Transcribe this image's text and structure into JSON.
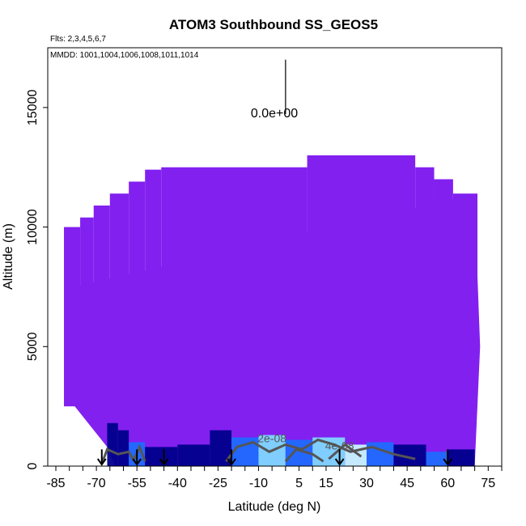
{
  "chart_data": {
    "type": "heatmap",
    "title": "ATOM3 Southbound SS_GEOS5",
    "annotations": {
      "flights": "Flts: 2,3,4,5,6,7",
      "dates": "MMDD: 1001,1004,1006,1008,1011,1014",
      "scale_label": "0.0e+00"
    },
    "xlabel": "Latitude (deg N)",
    "ylabel": "Altitude (m)",
    "xlim": [
      -88,
      80
    ],
    "ylim": [
      0,
      17500
    ],
    "x_ticks": [
      -85,
      -70,
      -55,
      -40,
      -25,
      -10,
      5,
      15,
      30,
      45,
      60,
      75
    ],
    "x_minor_ticks": [
      -85,
      -80,
      -75,
      -70,
      -65,
      -60,
      -55,
      -50,
      -45,
      -40,
      -35,
      -30,
      -25,
      -20,
      -15,
      -10,
      -5,
      0,
      5,
      10,
      15,
      20,
      25,
      30,
      35,
      40,
      45,
      50,
      55,
      60,
      65,
      70,
      75,
      80
    ],
    "y_ticks": [
      0,
      5000,
      10000,
      15000
    ],
    "grid": false,
    "background_color": "#8220f0",
    "colors": {
      "low": "#00008b",
      "mid": "#1e6cff",
      "high": "#7fd8ff",
      "peak": "#c8f4ff",
      "contour": "#555555"
    },
    "coverage_top": [
      {
        "x_start": -82,
        "x_end": -76,
        "top": 10000
      },
      {
        "x_start": -76,
        "x_end": -71,
        "top": 10400
      },
      {
        "x_start": -71,
        "x_end": -65,
        "top": 10900
      },
      {
        "x_start": -65,
        "x_end": -58,
        "top": 11400
      },
      {
        "x_start": -58,
        "x_end": -52,
        "top": 11900
      },
      {
        "x_start": -52,
        "x_end": -46,
        "top": 12400
      },
      {
        "x_start": -46,
        "x_end": 8,
        "top": 12500
      },
      {
        "x_start": 8,
        "x_end": 48,
        "top": 13000
      },
      {
        "x_start": 48,
        "x_end": 55,
        "top": 12500
      },
      {
        "x_start": 55,
        "x_end": 62,
        "top": 12000
      },
      {
        "x_start": 62,
        "x_end": 71,
        "top": 11400
      }
    ],
    "coverage_bottom_left_edge": [
      {
        "alt": 0,
        "x": -63
      },
      {
        "alt": 800,
        "x": -66
      },
      {
        "alt": 2500,
        "x": -78
      },
      {
        "alt": 5000,
        "x": -80
      },
      {
        "alt": 6500,
        "x": -80
      },
      {
        "alt": 7500,
        "x": -78
      }
    ],
    "coverage_right_edge": [
      {
        "alt": 0,
        "x": 70
      },
      {
        "alt": 2500,
        "x": 71
      },
      {
        "alt": 5000,
        "x": 72
      },
      {
        "alt": 8000,
        "x": 71
      },
      {
        "alt": 11400,
        "x": 71
      }
    ],
    "contour_labels": [
      {
        "text": "2e-08",
        "x": -5,
        "y": 1000
      },
      {
        "text": "4e-08",
        "x": 20,
        "y": 700
      }
    ],
    "arrows_x": [
      -68,
      -55,
      -45,
      -20,
      20,
      60
    ],
    "scale_bar": {
      "x": 0,
      "y_top": 17000,
      "y_bottom": 15000
    }
  }
}
